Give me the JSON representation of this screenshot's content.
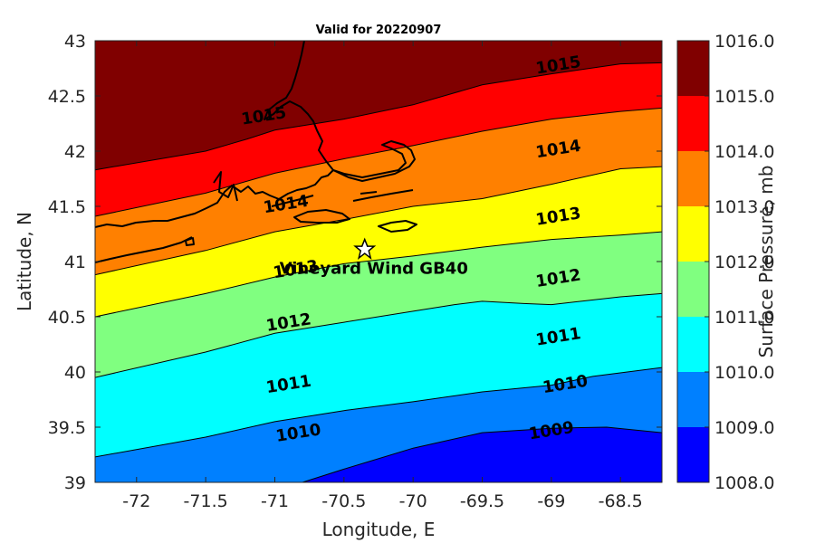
{
  "title": "Valid for 20220907",
  "axes": {
    "xlabel": "Longitude, E",
    "ylabel": "Latitude, N",
    "xlim": [
      -72.3,
      -68.2
    ],
    "ylim": [
      39,
      43
    ],
    "xticks": [
      -72,
      -71.5,
      -71,
      -70.5,
      -70,
      -69.5,
      -69,
      -68.5
    ],
    "xtick_labels": [
      "-72",
      "-71.5",
      "-71",
      "-70.5",
      "-70",
      "-69.5",
      "-69",
      "-68.5"
    ],
    "yticks": [
      39,
      39.5,
      40,
      40.5,
      41,
      41.5,
      42,
      42.5,
      43
    ],
    "ytick_labels": [
      "39",
      "39.5",
      "40",
      "40.5",
      "41",
      "41.5",
      "42",
      "42.5",
      "43"
    ]
  },
  "colorbar": {
    "label": "Surface Pressure, mb",
    "ticks": [
      "1008.0",
      "1009.0",
      "1010.0",
      "1011.0",
      "1012.0",
      "1013.0",
      "1014.0",
      "1015.0",
      "1016.0"
    ],
    "colors": [
      "#0000ff",
      "#0080ff",
      "#00ffff",
      "#80ff80",
      "#ffff00",
      "#ff8000",
      "#ff0000",
      "#800000"
    ]
  },
  "site": {
    "name": "Vineyard Wind GB40",
    "lon": -70.35,
    "lat": 41.11
  },
  "chart_data": {
    "type": "contour",
    "variable": "Surface Pressure, mb",
    "levels": [
      1008,
      1009,
      1010,
      1011,
      1012,
      1013,
      1014,
      1015,
      1016
    ],
    "isolines": [
      {
        "level": 1009,
        "lon": [
          -70.8,
          -70.5,
          -70.0,
          -69.5,
          -69.0,
          -68.6,
          -68.2
        ],
        "lat": [
          39.0,
          39.12,
          39.31,
          39.45,
          39.49,
          39.5,
          39.45
        ]
      },
      {
        "level": 1010,
        "lon": [
          -72.3,
          -71.5,
          -71.0,
          -70.5,
          -70.0,
          -69.5,
          -69.0,
          -68.7,
          -68.2
        ],
        "lat": [
          39.23,
          39.41,
          39.55,
          39.65,
          39.73,
          39.82,
          39.88,
          39.96,
          40.04
        ]
      },
      {
        "level": 1011,
        "lon": [
          -72.3,
          -71.5,
          -71.0,
          -70.5,
          -70.0,
          -69.7,
          -69.5,
          -69.2,
          -69.0,
          -68.5,
          -68.2
        ],
        "lat": [
          39.95,
          40.18,
          40.35,
          40.45,
          40.55,
          40.61,
          40.64,
          40.62,
          40.61,
          40.68,
          40.71
        ]
      },
      {
        "level": 1012,
        "lon": [
          -72.3,
          -71.5,
          -71.0,
          -70.5,
          -70.0,
          -69.5,
          -69.0,
          -68.5,
          -68.2
        ],
        "lat": [
          40.5,
          40.71,
          40.86,
          40.98,
          41.05,
          41.13,
          41.2,
          41.24,
          41.27
        ]
      },
      {
        "level": 1013,
        "lon": [
          -72.3,
          -71.5,
          -71.0,
          -70.5,
          -70.0,
          -69.5,
          -69.0,
          -68.5,
          -68.2
        ],
        "lat": [
          40.88,
          41.1,
          41.27,
          41.38,
          41.5,
          41.57,
          41.7,
          41.84,
          41.86
        ]
      },
      {
        "level": 1014,
        "lon": [
          -72.3,
          -71.5,
          -71.0,
          -70.5,
          -70.0,
          -69.5,
          -69.0,
          -68.5,
          -68.2
        ],
        "lat": [
          41.41,
          41.62,
          41.8,
          41.93,
          42.05,
          42.18,
          42.29,
          42.36,
          42.39
        ]
      },
      {
        "level": 1015,
        "lon": [
          -72.3,
          -71.5,
          -71.2,
          -71.0,
          -70.5,
          -70.0,
          -69.5,
          -69.0,
          -68.5,
          -68.2
        ],
        "lat": [
          41.83,
          42.0,
          42.11,
          42.19,
          42.29,
          42.42,
          42.6,
          42.7,
          42.79,
          42.8
        ]
      }
    ],
    "contour_labels": [
      {
        "text": "1009",
        "lon": -69.0,
        "lat": 39.47
      },
      {
        "text": "1010",
        "lon": -70.83,
        "lat": 39.45
      },
      {
        "text": "1010",
        "lon": -68.9,
        "lat": 39.89
      },
      {
        "text": "1011",
        "lon": -70.9,
        "lat": 39.89
      },
      {
        "text": "1011",
        "lon": -68.95,
        "lat": 40.32
      },
      {
        "text": "1012",
        "lon": -70.9,
        "lat": 40.45
      },
      {
        "text": "1012",
        "lon": -68.95,
        "lat": 40.85
      },
      {
        "text": "1013",
        "lon": -70.85,
        "lat": 40.93
      },
      {
        "text": "1013",
        "lon": -68.95,
        "lat": 41.41
      },
      {
        "text": "1014",
        "lon": -70.92,
        "lat": 41.52
      },
      {
        "text": "1014",
        "lon": -68.95,
        "lat": 42.02
      },
      {
        "text": "1015",
        "lon": -71.08,
        "lat": 42.32
      },
      {
        "text": "1015",
        "lon": -68.95,
        "lat": 42.78
      }
    ]
  }
}
